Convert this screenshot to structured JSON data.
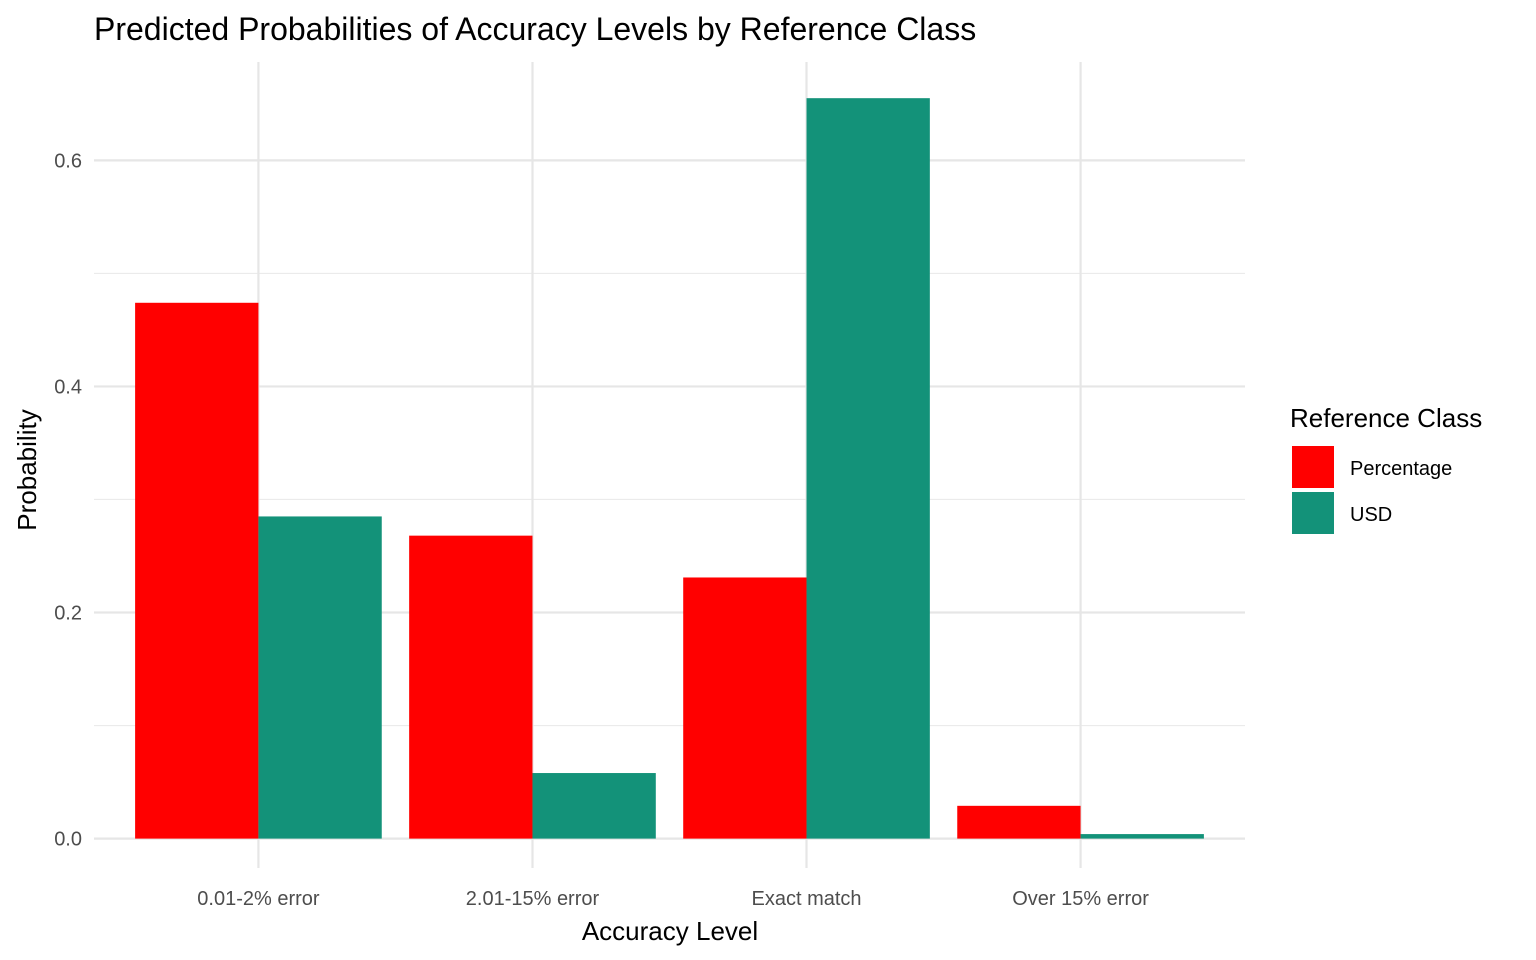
{
  "chart_data": {
    "type": "bar",
    "title": "Predicted Probabilities of Accuracy Levels by Reference Class",
    "xlabel": "Accuracy Level",
    "ylabel": "Probability",
    "categories": [
      "0.01-2% error",
      "2.01-15% error",
      "Exact match",
      "Over 15% error"
    ],
    "series": [
      {
        "name": "Percentage",
        "color": "#ff0000",
        "values": [
          0.474,
          0.268,
          0.231,
          0.029
        ]
      },
      {
        "name": "USD",
        "color": "#139279",
        "values": [
          0.285,
          0.058,
          0.655,
          0.004
        ]
      }
    ],
    "ylim": [
      -0.026,
      0.687
    ],
    "yticks": [
      0.0,
      0.2,
      0.4,
      0.6
    ],
    "ytick_labels": [
      "0.0",
      "0.2",
      "0.4",
      "0.6"
    ],
    "grid": true,
    "legend": {
      "title": "Reference Class",
      "position": "right"
    }
  }
}
